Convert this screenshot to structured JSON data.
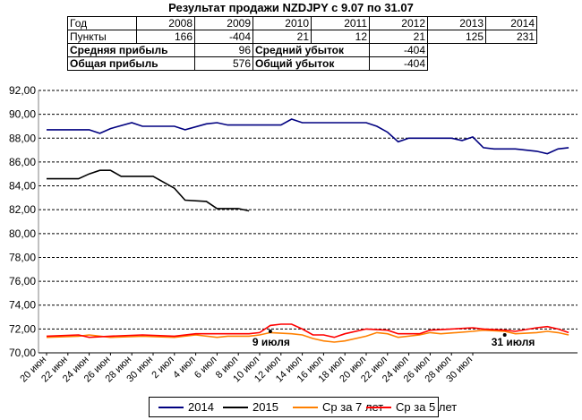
{
  "title": "Результат продажи NZDJPY с 9.07 по 31.07",
  "stats_table": {
    "header": [
      "Год",
      "2008",
      "2009",
      "2010",
      "2011",
      "2012",
      "2013",
      "2014"
    ],
    "points_row": [
      "Пункты",
      "166",
      "-404",
      "21",
      "12",
      "21",
      "125",
      "231"
    ],
    "avg_profit_label": "Средняя прибыль",
    "avg_profit_value": "96",
    "avg_loss_label": "Средний убыток",
    "avg_loss_value": "-404",
    "total_profit_label": "Общая прибыль",
    "total_profit_value": "576",
    "total_loss_label": "Общий убыток",
    "total_loss_value": "-404"
  },
  "chart_data": {
    "type": "line",
    "ylim": [
      70,
      92
    ],
    "yticks": [
      "70,00",
      "72,00",
      "74,00",
      "76,00",
      "78,00",
      "80,00",
      "82,00",
      "84,00",
      "86,00",
      "88,00",
      "90,00",
      "92,00"
    ],
    "xticks": [
      "20 июн",
      "22 июн",
      "24 июн",
      "26 июн",
      "28 июн",
      "30 июн",
      "2 июл",
      "4 июл",
      "6 июл",
      "8 июл",
      "10 июл",
      "12 июл",
      "14 июл",
      "16 июл",
      "18 июл",
      "20 июл",
      "22 июл",
      "24 июл",
      "26 июл",
      "28 июл",
      "30 июл"
    ],
    "annotations": [
      {
        "text": "9 июля",
        "day": 21
      },
      {
        "text": "31 июля",
        "day": 43
      }
    ],
    "grid": true,
    "legend_position": "bottom",
    "series": [
      {
        "name": "2014",
        "color": "#000080",
        "points": [
          [
            0,
            88.7
          ],
          [
            4,
            88.7
          ],
          [
            5,
            88.4
          ],
          [
            6,
            88.8
          ],
          [
            8,
            89.3
          ],
          [
            9,
            89.0
          ],
          [
            12,
            89.0
          ],
          [
            13,
            88.7
          ],
          [
            15,
            89.2
          ],
          [
            16,
            89.3
          ],
          [
            17,
            89.1
          ],
          [
            22,
            89.1
          ],
          [
            23,
            89.6
          ],
          [
            24,
            89.3
          ],
          [
            30,
            89.3
          ],
          [
            31,
            89.0
          ],
          [
            32,
            88.5
          ],
          [
            33,
            87.7
          ],
          [
            34,
            88.0
          ],
          [
            38,
            88.0
          ],
          [
            39,
            87.8
          ],
          [
            40,
            88.1
          ],
          [
            41,
            87.2
          ],
          [
            42,
            87.1
          ],
          [
            44,
            87.1
          ],
          [
            46,
            86.9
          ],
          [
            47,
            86.7
          ],
          [
            48,
            87.1
          ],
          [
            49,
            87.2
          ]
        ]
      },
      {
        "name": "2015",
        "color": "#000000",
        "points": [
          [
            0,
            84.6
          ],
          [
            3,
            84.6
          ],
          [
            4,
            85.0
          ],
          [
            5,
            85.3
          ],
          [
            6,
            85.3
          ],
          [
            7,
            84.8
          ],
          [
            10,
            84.8
          ],
          [
            11,
            84.3
          ],
          [
            12,
            83.8
          ],
          [
            13,
            82.8
          ],
          [
            15,
            82.7
          ],
          [
            16,
            82.1
          ],
          [
            18,
            82.1
          ],
          [
            19,
            81.9
          ]
        ]
      },
      {
        "name": "Ср за 7 лет",
        "color": "#ff8000",
        "points": [
          [
            0,
            71.3
          ],
          [
            3,
            71.4
          ],
          [
            4,
            71.5
          ],
          [
            6,
            71.3
          ],
          [
            9,
            71.4
          ],
          [
            12,
            71.3
          ],
          [
            14,
            71.5
          ],
          [
            16,
            71.3
          ],
          [
            17,
            71.4
          ],
          [
            19,
            71.4
          ],
          [
            20,
            71.5
          ],
          [
            21,
            71.7
          ],
          [
            23,
            71.6
          ],
          [
            24,
            71.5
          ],
          [
            25,
            71.2
          ],
          [
            26,
            71.0
          ],
          [
            27,
            70.9
          ],
          [
            28,
            71.0
          ],
          [
            30,
            71.4
          ],
          [
            31,
            71.7
          ],
          [
            32,
            71.6
          ],
          [
            33,
            71.3
          ],
          [
            35,
            71.5
          ],
          [
            36,
            71.7
          ],
          [
            37,
            71.6
          ],
          [
            40,
            71.8
          ],
          [
            41,
            71.9
          ],
          [
            43,
            71.8
          ],
          [
            44,
            71.6
          ],
          [
            46,
            71.7
          ],
          [
            47,
            71.8
          ],
          [
            48,
            71.7
          ],
          [
            49,
            71.5
          ]
        ]
      },
      {
        "name": "Ср за 5 лет",
        "color": "#ff0000",
        "points": [
          [
            0,
            71.4
          ],
          [
            3,
            71.5
          ],
          [
            4,
            71.3
          ],
          [
            6,
            71.4
          ],
          [
            9,
            71.5
          ],
          [
            12,
            71.4
          ],
          [
            14,
            71.6
          ],
          [
            16,
            71.6
          ],
          [
            19,
            71.6
          ],
          [
            20,
            71.7
          ],
          [
            21,
            72.3
          ],
          [
            22,
            72.4
          ],
          [
            23,
            72.4
          ],
          [
            24,
            72.0
          ],
          [
            25,
            71.5
          ],
          [
            26,
            71.5
          ],
          [
            27,
            71.3
          ],
          [
            28,
            71.6
          ],
          [
            30,
            72.0
          ],
          [
            32,
            71.9
          ],
          [
            33,
            71.6
          ],
          [
            35,
            71.6
          ],
          [
            36,
            71.9
          ],
          [
            38,
            72.0
          ],
          [
            40,
            72.1
          ],
          [
            41,
            72.0
          ],
          [
            43,
            71.9
          ],
          [
            44,
            71.8
          ],
          [
            46,
            72.1
          ],
          [
            47,
            72.2
          ],
          [
            48,
            72.0
          ],
          [
            49,
            71.7
          ]
        ]
      }
    ]
  }
}
